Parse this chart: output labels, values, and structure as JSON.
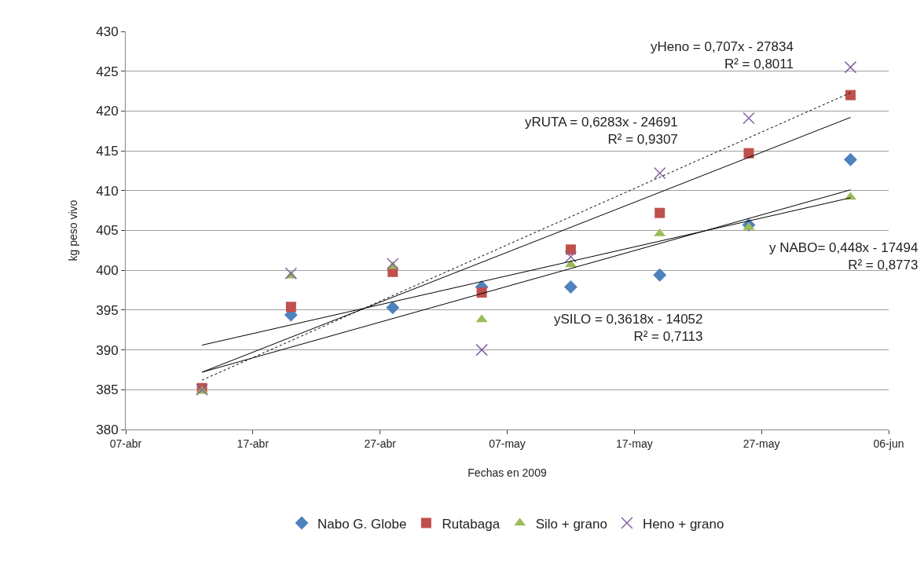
{
  "chart_data": {
    "type": "scatter",
    "xlabel": "Fechas en 2009",
    "ylabel": "kg peso vivo",
    "x": [
      "2009-04-13",
      "2009-04-20",
      "2009-04-28",
      "2009-05-05",
      "2009-05-12",
      "2009-05-19",
      "2009-05-26",
      "2009-06-03"
    ],
    "series": [
      {
        "name": "Nabo G. Globe",
        "color": "#4f81bd",
        "marker": "diamond",
        "values": [
          null,
          394.4,
          395.3,
          397.9,
          397.9,
          399.4,
          405.7,
          413.9
        ]
      },
      {
        "name": "Rutabaga",
        "color": "#c0504d",
        "marker": "square",
        "values": [
          385.2,
          395.4,
          399.8,
          397.2,
          402.6,
          407.2,
          414.7,
          422.0
        ]
      },
      {
        "name": "Silo + grano",
        "color": "#9bbb59",
        "marker": "triangle",
        "values": [
          384.8,
          399.3,
          400.5,
          393.8,
          400.7,
          404.6,
          405.4,
          409.2
        ]
      },
      {
        "name": "Heno + grano",
        "color": "#8064a2",
        "marker": "cross",
        "values": [
          385.0,
          399.6,
          400.8,
          390.0,
          401.7,
          412.2,
          419.1,
          425.5
        ]
      },
      {
        "type": "line",
        "x": [
          "2009-04-13",
          "2009-06-03"
        ],
        "values": [
          387.2,
          410.1
        ],
        "color": "#000000",
        "line_style": "solid"
      },
      {
        "type": "line",
        "x": [
          "2009-04-13",
          "2009-06-03"
        ],
        "values": [
          387.2,
          419.2
        ],
        "color": "#000000",
        "line_style": "solid"
      },
      {
        "type": "line",
        "x": [
          "2009-04-13",
          "2009-06-03"
        ],
        "values": [
          390.6,
          409.1
        ],
        "color": "#000000",
        "line_style": "solid"
      },
      {
        "type": "line",
        "x": [
          "2009-04-13",
          "2009-06-03"
        ],
        "values": [
          386.2,
          422.3
        ],
        "color": "#000000",
        "line_style": "dotted"
      }
    ],
    "annotations": [
      "yHeno = 0,707x - 27834\nR² = 0,8011",
      "yRUTA = 0,6283x - 24691\nR² = 0,9307",
      "y NABO= 0,448x - 17494\nR² = 0,8773",
      "ySILO = 0,3618x - 14052\nR² = 0,7113"
    ],
    "xlim": [
      "2009-04-07",
      "2009-06-06"
    ],
    "xticks": [
      {
        "value": "2009-04-07",
        "label": "07-abr"
      },
      {
        "value": "2009-04-17",
        "label": "17-abr"
      },
      {
        "value": "2009-04-27",
        "label": "27-abr"
      },
      {
        "value": "2009-05-07",
        "label": "07-may"
      },
      {
        "value": "2009-05-17",
        "label": "17-may"
      },
      {
        "value": "2009-05-27",
        "label": "27-may"
      },
      {
        "value": "2009-06-06",
        "label": "06-jun"
      }
    ],
    "ylim": [
      380,
      430
    ],
    "yticks": [
      380,
      385,
      390,
      395,
      400,
      405,
      410,
      415,
      420,
      425,
      430
    ],
    "grid": "y",
    "legend": "bottom"
  }
}
